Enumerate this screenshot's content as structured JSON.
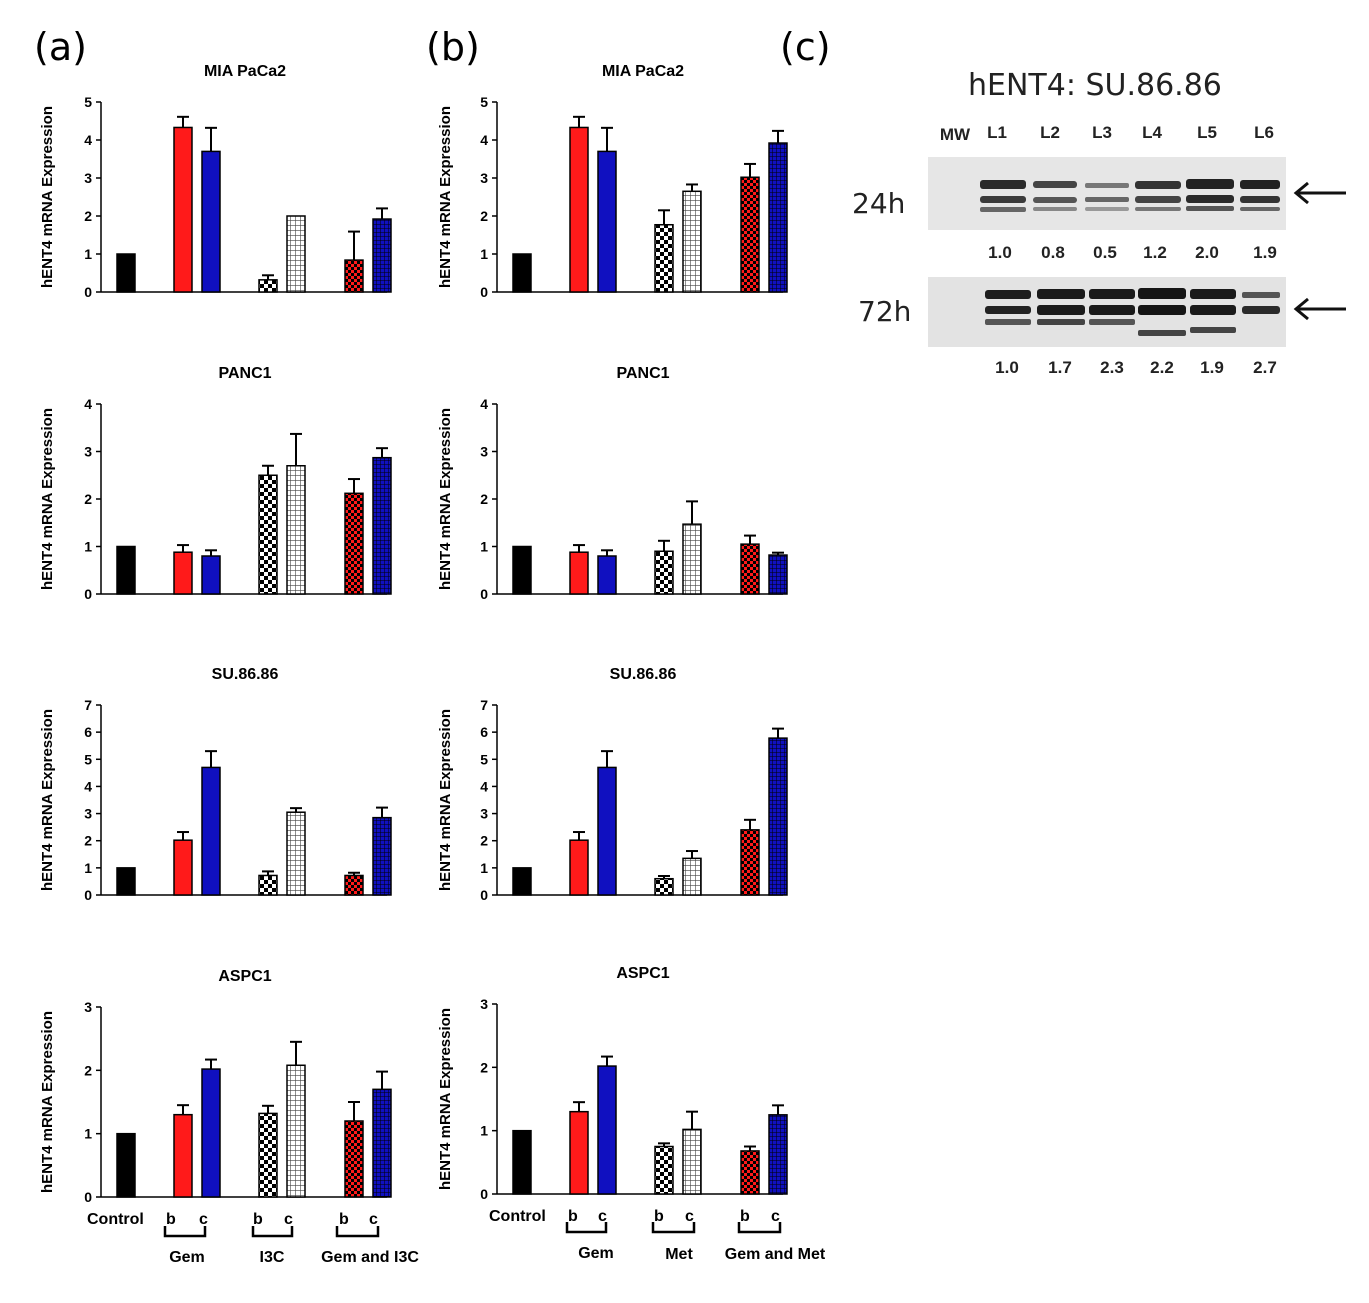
{
  "panels": {
    "a": "(a)",
    "b": "(b)",
    "c": "(c)"
  },
  "y_axis_label": "hENT4 mRNA Expression",
  "colors": {
    "control": "#000000",
    "red": "#ff1a1a",
    "blue": "#1010c0",
    "black": "#000000"
  },
  "x_labels_a": {
    "control": "Control",
    "b": "b",
    "c": "c",
    "groups": [
      "Gem",
      "I3C",
      "Gem and I3C"
    ]
  },
  "x_labels_b": {
    "control": "Control",
    "b": "b",
    "c": "c",
    "groups": [
      "Gem",
      "Met",
      "Gem and Met"
    ]
  },
  "chart_data": [
    {
      "type": "bar",
      "panel": "a",
      "title": "MIA PaCa2",
      "ylim": [
        0,
        5
      ],
      "yticks": [
        0,
        1,
        2,
        3,
        4,
        5
      ],
      "bars": [
        {
          "v": 1,
          "e": 0
        },
        {
          "v": 4.33,
          "e": 0.28
        },
        {
          "v": 3.7,
          "e": 0.62
        },
        {
          "v": 0.32,
          "e": 0.12
        },
        {
          "v": 2.0,
          "e": 0
        },
        {
          "v": 0.84,
          "e": 0.75
        },
        {
          "v": 1.92,
          "e": 0.28
        }
      ]
    },
    {
      "type": "bar",
      "panel": "a",
      "title": "PANC1",
      "ylim": [
        0,
        4
      ],
      "yticks": [
        0,
        1,
        2,
        3,
        4
      ],
      "bars": [
        {
          "v": 1,
          "e": 0
        },
        {
          "v": 0.88,
          "e": 0.15
        },
        {
          "v": 0.8,
          "e": 0.12
        },
        {
          "v": 2.5,
          "e": 0.2
        },
        {
          "v": 2.7,
          "e": 0.67
        },
        {
          "v": 2.12,
          "e": 0.3
        },
        {
          "v": 2.87,
          "e": 0.2
        }
      ]
    },
    {
      "type": "bar",
      "panel": "a",
      "title": "SU.86.86",
      "ylim": [
        0,
        7
      ],
      "yticks": [
        0,
        1,
        2,
        3,
        4,
        5,
        6,
        7
      ],
      "bars": [
        {
          "v": 1,
          "e": 0
        },
        {
          "v": 2.02,
          "e": 0.3
        },
        {
          "v": 4.7,
          "e": 0.6
        },
        {
          "v": 0.72,
          "e": 0.15
        },
        {
          "v": 3.05,
          "e": 0.15
        },
        {
          "v": 0.72,
          "e": 0.1
        },
        {
          "v": 2.85,
          "e": 0.37
        }
      ]
    },
    {
      "type": "bar",
      "panel": "a",
      "title": "ASPC1",
      "ylim": [
        0,
        3
      ],
      "yticks": [
        0,
        1,
        2,
        3
      ],
      "bars": [
        {
          "v": 1,
          "e": 0
        },
        {
          "v": 1.3,
          "e": 0.15
        },
        {
          "v": 2.02,
          "e": 0.15
        },
        {
          "v": 1.32,
          "e": 0.12
        },
        {
          "v": 2.08,
          "e": 0.37
        },
        {
          "v": 1.2,
          "e": 0.3
        },
        {
          "v": 1.7,
          "e": 0.28
        }
      ]
    },
    {
      "type": "bar",
      "panel": "b",
      "title": "MIA PaCa2",
      "ylim": [
        0,
        5
      ],
      "yticks": [
        0,
        1,
        2,
        3,
        4,
        5
      ],
      "bars": [
        {
          "v": 1,
          "e": 0
        },
        {
          "v": 4.33,
          "e": 0.28
        },
        {
          "v": 3.7,
          "e": 0.62
        },
        {
          "v": 1.77,
          "e": 0.38
        },
        {
          "v": 2.65,
          "e": 0.18
        },
        {
          "v": 3.02,
          "e": 0.35
        },
        {
          "v": 3.92,
          "e": 0.32
        }
      ]
    },
    {
      "type": "bar",
      "panel": "b",
      "title": "PANC1",
      "ylim": [
        0,
        4
      ],
      "yticks": [
        0,
        1,
        2,
        3,
        4
      ],
      "bars": [
        {
          "v": 1,
          "e": 0
        },
        {
          "v": 0.88,
          "e": 0.15
        },
        {
          "v": 0.8,
          "e": 0.12
        },
        {
          "v": 0.9,
          "e": 0.22
        },
        {
          "v": 1.47,
          "e": 0.48
        },
        {
          "v": 1.05,
          "e": 0.18
        },
        {
          "v": 0.82,
          "e": 0.05
        }
      ]
    },
    {
      "type": "bar",
      "panel": "b",
      "title": "SU.86.86",
      "ylim": [
        0,
        7
      ],
      "yticks": [
        0,
        1,
        2,
        3,
        4,
        5,
        6,
        7
      ],
      "bars": [
        {
          "v": 1,
          "e": 0
        },
        {
          "v": 2.02,
          "e": 0.3
        },
        {
          "v": 4.7,
          "e": 0.6
        },
        {
          "v": 0.6,
          "e": 0.1
        },
        {
          "v": 1.35,
          "e": 0.27
        },
        {
          "v": 2.4,
          "e": 0.37
        },
        {
          "v": 5.78,
          "e": 0.35
        }
      ]
    },
    {
      "type": "bar",
      "panel": "b",
      "title": "ASPC1",
      "ylim": [
        0,
        3
      ],
      "yticks": [
        0,
        1,
        2,
        3
      ],
      "bars": [
        {
          "v": 1,
          "e": 0
        },
        {
          "v": 1.3,
          "e": 0.15
        },
        {
          "v": 2.02,
          "e": 0.15
        },
        {
          "v": 0.75,
          "e": 0.05
        },
        {
          "v": 1.02,
          "e": 0.28
        },
        {
          "v": 0.68,
          "e": 0.07
        },
        {
          "v": 1.25,
          "e": 0.15
        }
      ]
    }
  ],
  "blot": {
    "title": "hENT4: SU.86.86",
    "lanes": [
      "MW",
      "L1",
      "L2",
      "L3",
      "L4",
      "L5",
      "L6"
    ],
    "rows": [
      {
        "time": "24h",
        "values": [
          "1.0",
          "0.8",
          "0.5",
          "1.2",
          "2.0",
          "1.9"
        ]
      },
      {
        "time": "72h",
        "values": [
          "1.0",
          "1.7",
          "2.3",
          "2.2",
          "1.9",
          "2.7"
        ]
      }
    ]
  }
}
